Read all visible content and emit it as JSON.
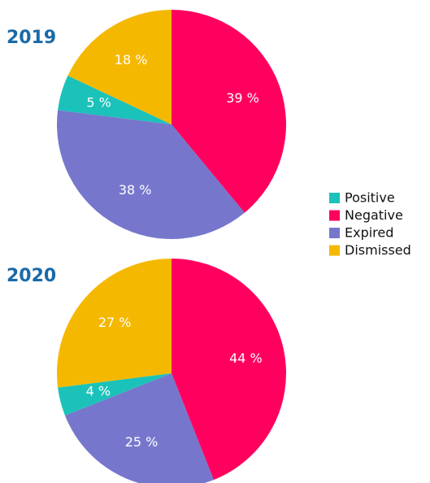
{
  "legend": {
    "categories": [
      "Positive",
      "Negative",
      "Expired",
      "Dismissed"
    ],
    "colors": [
      "#1bc2b9",
      "#ff005f",
      "#7677cc",
      "#f5b800"
    ]
  },
  "chart_data": [
    {
      "type": "pie",
      "title": "2019",
      "values": [
        5,
        39,
        38,
        18
      ],
      "value_labels": [
        "5 %",
        "39 %",
        "38 %",
        "18 %"
      ]
    },
    {
      "type": "pie",
      "title": "2020",
      "values": [
        4,
        44,
        25,
        27
      ],
      "value_labels": [
        "4 %",
        "44 %",
        "25 %",
        "27 %"
      ]
    }
  ]
}
